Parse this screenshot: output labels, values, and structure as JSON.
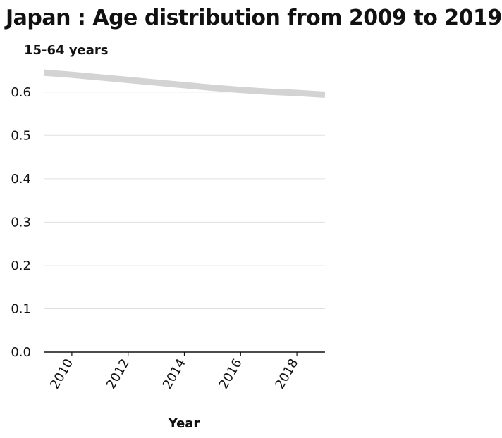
{
  "chart_data": {
    "type": "line",
    "title": "Japan : Age distribution from 2009 to 2019",
    "ylabel": "15-64 years",
    "xlabel": "Year",
    "x": [
      2009,
      2010,
      2011,
      2012,
      2013,
      2014,
      2015,
      2016,
      2017,
      2018,
      2019
    ],
    "series": [
      {
        "values": [
          0.645,
          0.64,
          0.634,
          0.628,
          0.622,
          0.616,
          0.61,
          0.605,
          0.601,
          0.598,
          0.594
        ]
      }
    ],
    "xlim": [
      2009,
      2019
    ],
    "ylim": [
      0,
      0.65
    ],
    "x_ticks": [
      2010,
      2012,
      2014,
      2016,
      2018
    ],
    "y_ticks": [
      "0.0",
      "0.1",
      "0.2",
      "0.3",
      "0.4",
      "0.5",
      "0.6"
    ],
    "grid": "horizontal",
    "line_color": "#d3d3d3",
    "grid_color": "#e0e0e0",
    "axis_color": "#111111"
  }
}
